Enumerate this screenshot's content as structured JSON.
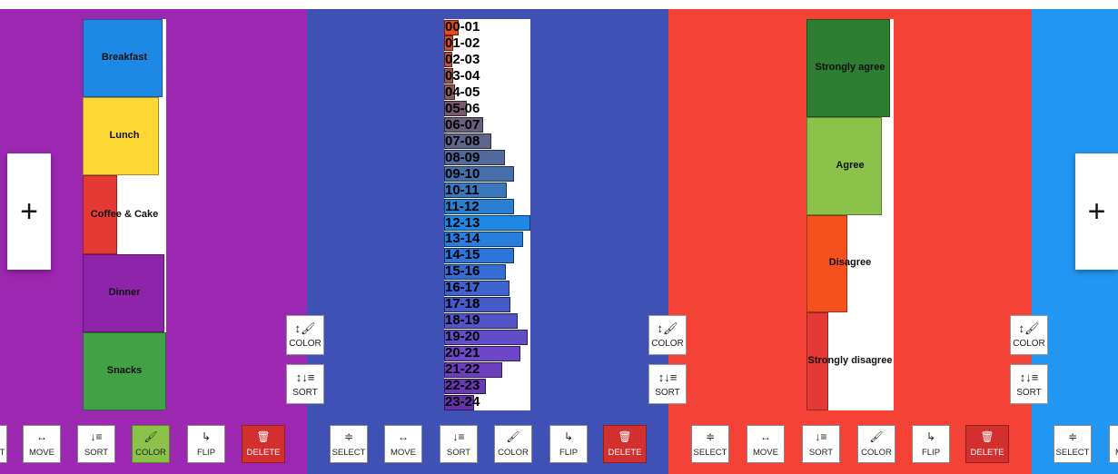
{
  "app": {
    "add_label": "+",
    "colors": {
      "purple": "#9c27b0",
      "indigo": "#3f51b5",
      "red": "#f44336",
      "blue": "#2196f3",
      "delete": "#d32f2f",
      "active": "#8bc34a"
    }
  },
  "side_buttons": {
    "color": {
      "label": "COLOR",
      "icon": "↕🖌"
    },
    "sort": {
      "label": "SORT",
      "icon": "↕↓≡"
    }
  },
  "toolbar": {
    "select": {
      "label": "SELECT",
      "icon": "≑"
    },
    "move": {
      "label": "MOVE",
      "icon": "↔"
    },
    "sort": {
      "label": "SORT",
      "icon": "↓≡"
    },
    "color": {
      "label": "COLOR",
      "icon": "🖌"
    },
    "flip": {
      "label": "FLIP",
      "icon": "↳"
    },
    "delete": {
      "label": "DELETE",
      "icon": "🗑"
    }
  },
  "meals": {
    "items": [
      {
        "label": "Breakfast",
        "value": 0.96,
        "color": "#1e88e5"
      },
      {
        "label": "Lunch",
        "value": 0.91,
        "color": "#fdd835"
      },
      {
        "label": "Coffee & Cake",
        "value": 0.41,
        "color": "#e53935"
      },
      {
        "label": "Dinner",
        "value": 0.98,
        "color": "#8e24aa"
      },
      {
        "label": "Snacks",
        "value": 1.0,
        "color": "#43a047"
      }
    ]
  },
  "hours": {
    "items": [
      {
        "label": "00-01",
        "value": 0.17
      },
      {
        "label": "01-02",
        "value": 0.11
      },
      {
        "label": "02-03",
        "value": 0.09
      },
      {
        "label": "03-04",
        "value": 0.11
      },
      {
        "label": "04-05",
        "value": 0.13
      },
      {
        "label": "05-06",
        "value": 0.26
      },
      {
        "label": "06-07",
        "value": 0.45
      },
      {
        "label": "07-08",
        "value": 0.55
      },
      {
        "label": "08-09",
        "value": 0.71
      },
      {
        "label": "09-10",
        "value": 0.81
      },
      {
        "label": "10-11",
        "value": 0.73
      },
      {
        "label": "11-12",
        "value": 0.81
      },
      {
        "label": "12-13",
        "value": 1.0
      },
      {
        "label": "13-14",
        "value": 0.92
      },
      {
        "label": "14-15",
        "value": 0.81
      },
      {
        "label": "15-16",
        "value": 0.72
      },
      {
        "label": "16-17",
        "value": 0.76
      },
      {
        "label": "17-18",
        "value": 0.77
      },
      {
        "label": "18-19",
        "value": 0.85
      },
      {
        "label": "19-20",
        "value": 0.97
      },
      {
        "label": "20-21",
        "value": 0.88
      },
      {
        "label": "21-22",
        "value": 0.67
      },
      {
        "label": "22-23",
        "value": 0.48
      },
      {
        "label": "23-24",
        "value": 0.35
      }
    ]
  },
  "opinions": {
    "items": [
      {
        "label": "Strongly agree",
        "value": 0.96,
        "color": "#2e7d32"
      },
      {
        "label": "Agree",
        "value": 0.86,
        "color": "#8bc34a"
      },
      {
        "label": "Disagree",
        "value": 0.47,
        "color": "#f4511e"
      },
      {
        "label": "Strongly disagree",
        "value": 0.25,
        "color": "#e53935"
      }
    ]
  }
}
